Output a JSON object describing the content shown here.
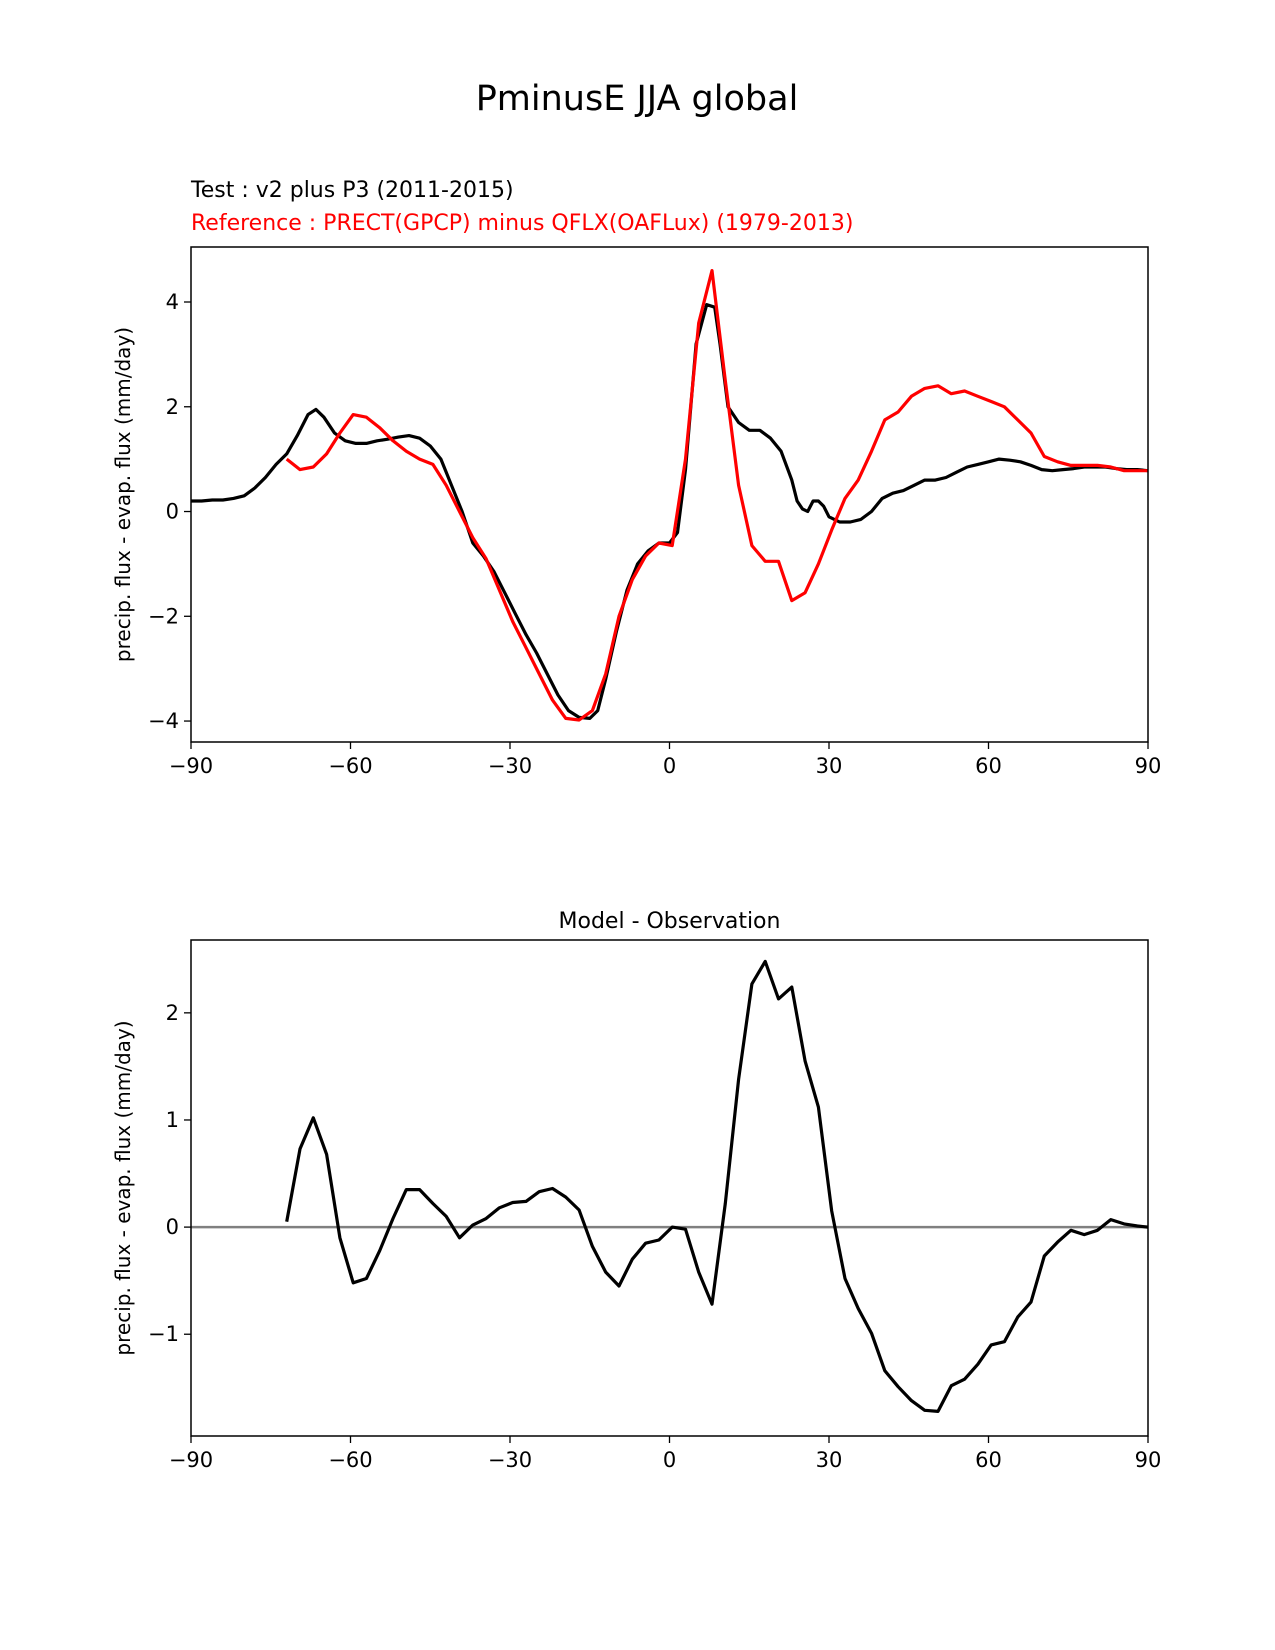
{
  "figure": {
    "title": "PminusE JJA global",
    "test_label": "Test : v2 plus P3 (2011-2015)",
    "ref_label": "Reference : PRECT(GPCP) minus QFLX(OAFLux) (1979-2013)",
    "colors": {
      "test": "#000000",
      "ref": "#ff0000",
      "zero": "#808080"
    }
  },
  "chart_data": [
    {
      "type": "line",
      "title": "",
      "xlabel": "",
      "ylabel": "precip. flux - evap. flux (mm/day)",
      "xlim": [
        -90,
        90
      ],
      "ylim": [
        -4.4,
        5.05
      ],
      "xticks": [
        -90,
        -60,
        -30,
        0,
        30,
        60,
        90
      ],
      "yticks": [
        -4,
        -2,
        0,
        2,
        4
      ],
      "series": [
        {
          "name": "Test",
          "color": "#000000",
          "x": [
            -90,
            -88,
            -86,
            -84,
            -82,
            -80,
            -78,
            -76,
            -74,
            -72,
            -70,
            -68,
            -66.5,
            -65,
            -63,
            -61,
            -59,
            -57,
            -55,
            -53,
            -51,
            -49,
            -47,
            -45,
            -43,
            -41,
            -39,
            -37,
            -35,
            -33,
            -31,
            -29,
            -27,
            -25,
            -23,
            -21,
            -19,
            -17,
            -15,
            -13.5,
            -12,
            -10,
            -8,
            -6,
            -4,
            -2,
            0,
            1.5,
            3,
            5,
            7,
            8.5,
            9.5,
            11,
            13,
            15,
            17,
            19,
            21,
            23,
            24,
            25,
            26,
            27,
            28,
            29,
            30,
            32,
            34,
            36,
            38,
            40,
            42,
            44,
            46,
            48,
            50,
            52,
            54,
            56,
            58,
            60,
            62,
            64,
            66,
            68,
            70,
            72,
            74,
            76,
            78,
            80,
            82,
            84,
            86,
            88,
            90
          ],
          "y": [
            0.2,
            0.2,
            0.22,
            0.22,
            0.25,
            0.3,
            0.45,
            0.65,
            0.9,
            1.1,
            1.45,
            1.85,
            1.95,
            1.8,
            1.5,
            1.35,
            1.3,
            1.3,
            1.35,
            1.38,
            1.42,
            1.45,
            1.4,
            1.25,
            1.0,
            0.5,
            0.0,
            -0.6,
            -0.85,
            -1.15,
            -1.55,
            -1.95,
            -2.35,
            -2.7,
            -3.1,
            -3.5,
            -3.8,
            -3.93,
            -3.95,
            -3.8,
            -3.2,
            -2.3,
            -1.5,
            -1.0,
            -0.75,
            -0.6,
            -0.6,
            -0.4,
            0.8,
            3.2,
            3.95,
            3.9,
            3.2,
            2.0,
            1.7,
            1.55,
            1.55,
            1.4,
            1.15,
            0.6,
            0.2,
            0.05,
            0.0,
            0.2,
            0.2,
            0.1,
            -0.1,
            -0.2,
            -0.2,
            -0.15,
            0.0,
            0.25,
            0.35,
            0.4,
            0.5,
            0.6,
            0.6,
            0.65,
            0.75,
            0.85,
            0.9,
            0.95,
            1.0,
            0.98,
            0.95,
            0.88,
            0.8,
            0.78,
            0.8,
            0.82,
            0.85,
            0.85,
            0.85,
            0.82,
            0.8,
            0.8,
            0.78
          ]
        },
        {
          "name": "Reference",
          "color": "#ff0000",
          "x": [
            -72,
            -69.5,
            -67,
            -64.5,
            -62,
            -59.5,
            -57,
            -54.5,
            -52,
            -49.5,
            -47,
            -44.5,
            -42,
            -39.5,
            -37,
            -34.5,
            -32,
            -29.5,
            -27,
            -24.5,
            -22,
            -19.5,
            -17,
            -14.5,
            -12,
            -9.5,
            -7,
            -4.5,
            -2,
            0.5,
            3,
            5.5,
            8,
            10.5,
            13,
            15.5,
            18,
            20.5,
            23,
            25.5,
            28,
            30.5,
            33,
            35.5,
            38,
            40.5,
            43,
            45.5,
            48,
            50.5,
            53,
            55.5,
            58,
            60.5,
            63,
            65.5,
            68,
            70.5,
            73,
            75.5,
            78,
            80.5,
            83,
            85.5,
            88,
            90
          ],
          "y": [
            1.0,
            0.8,
            0.85,
            1.1,
            1.5,
            1.85,
            1.8,
            1.6,
            1.35,
            1.15,
            1.0,
            0.9,
            0.5,
            0.0,
            -0.5,
            -0.9,
            -1.5,
            -2.1,
            -2.6,
            -3.1,
            -3.6,
            -3.95,
            -3.98,
            -3.8,
            -3.1,
            -2.0,
            -1.3,
            -0.85,
            -0.6,
            -0.65,
            1.0,
            3.6,
            4.6,
            2.5,
            0.5,
            -0.65,
            -0.95,
            -0.95,
            -1.7,
            -1.55,
            -1.0,
            -0.35,
            0.25,
            0.6,
            1.15,
            1.75,
            1.9,
            2.2,
            2.35,
            2.4,
            2.25,
            2.3,
            2.2,
            2.1,
            2.0,
            1.75,
            1.5,
            1.05,
            0.95,
            0.88,
            0.88,
            0.88,
            0.85,
            0.78,
            0.78,
            0.78
          ]
        }
      ]
    },
    {
      "type": "line",
      "title": "Model - Observation",
      "xlabel": "",
      "ylabel": "precip. flux - evap. flux (mm/day)",
      "xlim": [
        -90,
        90
      ],
      "ylim": [
        -1.95,
        2.68
      ],
      "xticks": [
        -90,
        -60,
        -30,
        0,
        30,
        60,
        90
      ],
      "yticks": [
        -1,
        0,
        1,
        2
      ],
      "zero_line": true,
      "series": [
        {
          "color": "#000000",
          "x": [
            -72,
            -69.5,
            -67,
            -64.5,
            -62,
            -59.5,
            -57,
            -54.5,
            -52,
            -49.5,
            -47,
            -44.5,
            -42,
            -39.5,
            -37,
            -34.5,
            -32,
            -29.5,
            -27,
            -24.5,
            -22,
            -19.5,
            -17,
            -14.5,
            -12,
            -9.5,
            -7,
            -4.5,
            -2,
            0.5,
            3,
            5.5,
            8,
            10.5,
            13,
            15.5,
            18,
            20.5,
            23,
            25.5,
            28,
            30.5,
            33,
            35.5,
            38,
            40.5,
            43,
            45.5,
            48,
            50.5,
            53,
            55.5,
            58,
            60.5,
            63,
            65.5,
            68,
            70.5,
            73,
            75.5,
            78,
            80.5,
            83,
            85.5,
            88,
            90
          ],
          "y": [
            0.05,
            0.73,
            1.02,
            0.68,
            -0.1,
            -0.52,
            -0.48,
            -0.22,
            0.08,
            0.35,
            0.35,
            0.22,
            0.1,
            -0.1,
            0.02,
            0.08,
            0.18,
            0.23,
            0.24,
            0.33,
            0.36,
            0.28,
            0.16,
            -0.18,
            -0.42,
            -0.55,
            -0.3,
            -0.15,
            -0.12,
            0.0,
            -0.02,
            -0.42,
            -0.72,
            0.22,
            1.38,
            2.27,
            2.48,
            2.13,
            2.24,
            1.55,
            1.12,
            0.15,
            -0.48,
            -0.76,
            -0.99,
            -1.34,
            -1.49,
            -1.62,
            -1.71,
            -1.72,
            -1.48,
            -1.42,
            -1.28,
            -1.1,
            -1.07,
            -0.84,
            -0.7,
            -0.27,
            -0.14,
            -0.03,
            -0.07,
            -0.03,
            0.07,
            0.03,
            0.01,
            0.0
          ]
        }
      ]
    }
  ]
}
